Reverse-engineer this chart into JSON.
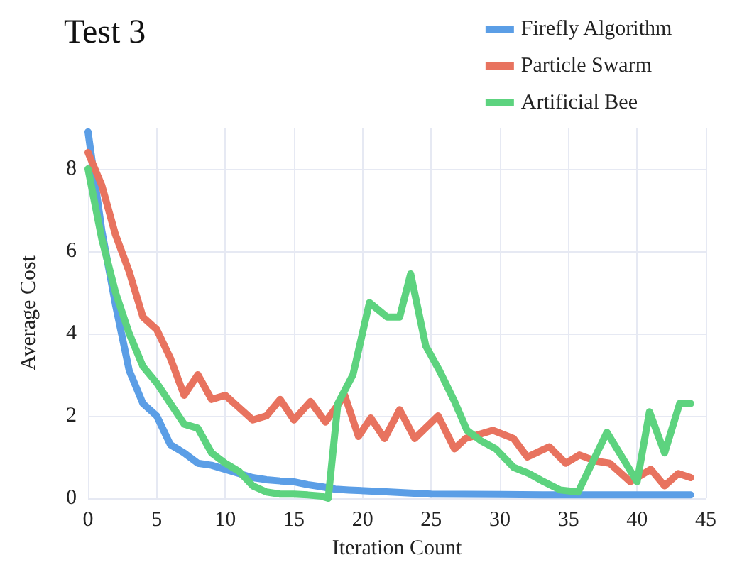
{
  "chart_data": {
    "type": "line",
    "title": "Test 3",
    "xlabel": "Iteration Count",
    "ylabel": "Average Cost",
    "xlim": [
      0,
      45
    ],
    "xticks": [
      0,
      5,
      10,
      15,
      20,
      25,
      30,
      35,
      40,
      45
    ],
    "ylim": [
      0,
      9
    ],
    "yticks": [
      0,
      2,
      4,
      6,
      8
    ],
    "grid": true,
    "legend": "top right",
    "marker": "none",
    "line_style": "solid",
    "series": [
      {
        "name": "Firefly Algorithm",
        "color": "#5b9ee6",
        "x": [
          0,
          1,
          2,
          3,
          4,
          5,
          6,
          7,
          8,
          9,
          10,
          11,
          12,
          13,
          14,
          15,
          16,
          17,
          18,
          19,
          22,
          25,
          30,
          35,
          40,
          43.9
        ],
        "values": [
          8.9,
          6.5,
          4.7,
          3.1,
          2.3,
          2.0,
          1.3,
          1.1,
          0.85,
          0.8,
          0.7,
          0.6,
          0.5,
          0.45,
          0.42,
          0.4,
          0.33,
          0.28,
          0.22,
          0.2,
          0.15,
          0.1,
          0.09,
          0.08,
          0.08,
          0.08
        ]
      },
      {
        "name": "Particle Swarm",
        "color": "#e8735f",
        "x": [
          0,
          1,
          2,
          3,
          4,
          5,
          6,
          7,
          8,
          9,
          10,
          11,
          12,
          13,
          14,
          15,
          16.2,
          17.3,
          18.7,
          19.7,
          20.6,
          21.6,
          22.7,
          23.8,
          25.5,
          26.7,
          27.5,
          29.5,
          31,
          32,
          33.6,
          34.8,
          35.8,
          37,
          38,
          39.5,
          41,
          42,
          43,
          43.9
        ],
        "values": [
          8.4,
          7.6,
          6.4,
          5.5,
          4.4,
          4.1,
          3.4,
          2.5,
          3.0,
          2.4,
          2.5,
          2.2,
          1.9,
          2.0,
          2.4,
          1.9,
          2.35,
          1.85,
          2.5,
          1.5,
          1.95,
          1.45,
          2.15,
          1.45,
          2.0,
          1.2,
          1.45,
          1.65,
          1.45,
          1.0,
          1.25,
          0.85,
          1.05,
          0.9,
          0.85,
          0.4,
          0.7,
          0.3,
          0.6,
          0.5
        ]
      },
      {
        "name": "Artificial Bee",
        "color": "#5dd37f",
        "x": [
          0,
          1,
          2,
          3,
          4,
          5,
          6,
          7,
          8,
          9,
          10,
          11,
          12,
          13,
          14,
          15,
          16,
          17,
          17.5,
          18.2,
          19.3,
          20.5,
          21.8,
          22.7,
          23.5,
          24.6,
          25.6,
          26.7,
          27.6,
          28.6,
          29.7,
          31,
          32.1,
          33.2,
          34.4,
          35.7,
          37.8,
          38.9,
          40,
          40.9,
          42,
          43.1,
          43.9
        ],
        "values": [
          8.0,
          6.3,
          5.0,
          4.0,
          3.2,
          2.8,
          2.3,
          1.8,
          1.7,
          1.1,
          0.85,
          0.65,
          0.3,
          0.15,
          0.1,
          0.1,
          0.08,
          0.05,
          0,
          2.3,
          3.0,
          4.75,
          4.4,
          4.4,
          5.45,
          3.7,
          3.1,
          2.35,
          1.65,
          1.4,
          1.2,
          0.75,
          0.6,
          0.4,
          0.2,
          0.15,
          1.6,
          1.0,
          0.4,
          2.1,
          1.1,
          2.3,
          2.3
        ]
      }
    ]
  }
}
